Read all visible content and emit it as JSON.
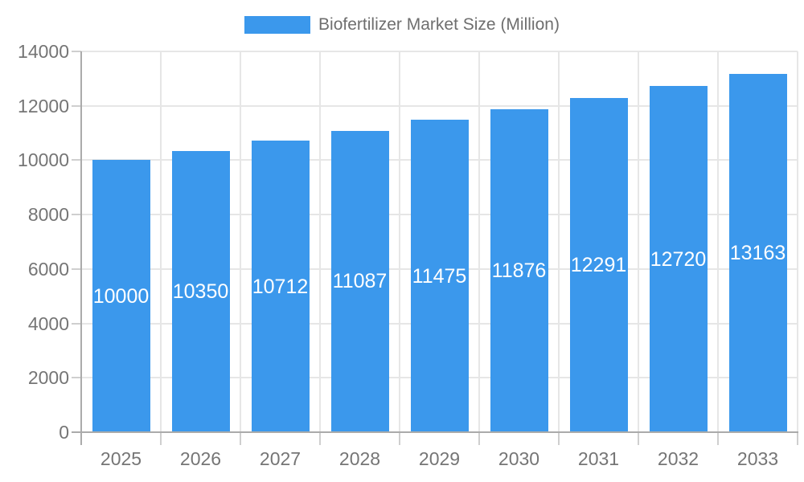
{
  "chart_data": {
    "type": "bar",
    "title": "",
    "legend": "Biofertilizer Market Size (Million)",
    "legend_position": "top",
    "categories": [
      "2025",
      "2026",
      "2027",
      "2028",
      "2029",
      "2030",
      "2031",
      "2032",
      "2033"
    ],
    "series": [
      {
        "name": "Biofertilizer Market Size (Million)",
        "values": [
          10000,
          10350,
          10712,
          11087,
          11475,
          11876,
          12291,
          12720,
          13163
        ]
      }
    ],
    "value_labels": [
      "10000",
      "10350",
      "10712",
      "11087",
      "11475",
      "11876",
      "12291",
      "12720",
      "13163"
    ],
    "xlabel": "",
    "ylabel": "",
    "ylim": [
      0,
      14000
    ],
    "y_ticks": [
      0,
      2000,
      4000,
      6000,
      8000,
      10000,
      12000,
      14000
    ],
    "grid": true,
    "colors": {
      "bar": "#3b98ec",
      "bar_label": "#ffffff",
      "axis_label": "#757575",
      "legend_label": "#6e6e6e",
      "gridline": "#e6e6e6",
      "tick": "#cfcfcf",
      "axis_line": "#ababab",
      "background": "#ffffff"
    }
  }
}
